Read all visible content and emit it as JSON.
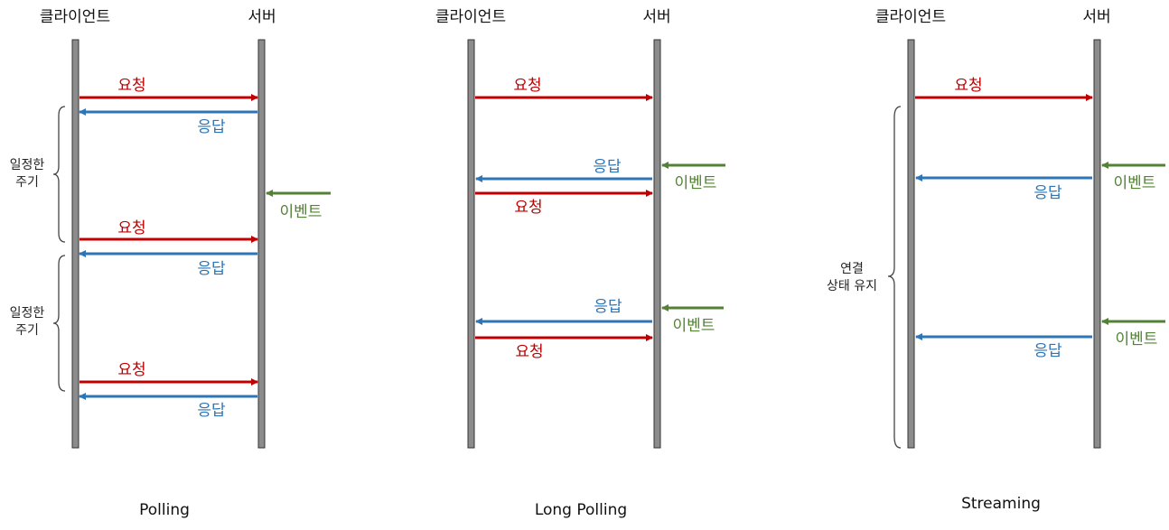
{
  "headers": {
    "client": "클라이언트",
    "server": "서버"
  },
  "labels": {
    "request": "요청",
    "response": "응답",
    "event": "이벤트"
  },
  "notes": {
    "period_line1": "일정한",
    "period_line2": "주기",
    "conn_line1": "연결",
    "conn_line2": "상태 유지"
  },
  "titles": {
    "polling": "Polling",
    "long_polling": "Long Polling",
    "streaming": "Streaming"
  },
  "colors": {
    "request": "#c00000",
    "response": "#2e75b6",
    "event": "#538135",
    "lifeline_fill": "#8c8c8c",
    "lifeline_stroke": "#333333"
  }
}
